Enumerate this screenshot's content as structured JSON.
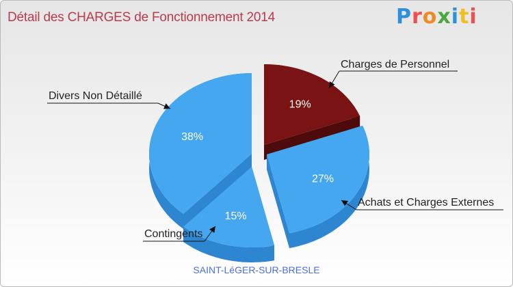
{
  "title": "Détail des CHARGES de Fonctionnement 2014",
  "logo": {
    "text": "Proxiti",
    "letter_colors": [
      "#2f8fd8",
      "#ef4f4f",
      "#f08a24",
      "#4aa83d",
      "#2f8fd8",
      "#f0c020",
      "#ef4f4f"
    ]
  },
  "footer_label": "SAINT-LéGER-SUR-BRESLE",
  "colors": {
    "title": "#bb3a4c",
    "blue_slice": "#45a7ef",
    "blue_side": "#2f86d0",
    "red_slice": "#7a1414",
    "red_side": "#4e0b0b"
  },
  "chart_data": {
    "type": "pie",
    "title": "Détail des CHARGES de Fonctionnement 2014",
    "slices": [
      {
        "label": "Charges de Personnel",
        "value": 19,
        "display": "19%",
        "color": "#7a1414"
      },
      {
        "label": "Achats et Charges Externes",
        "value": 27,
        "display": "27%",
        "color": "#45a7ef"
      },
      {
        "label": "Contingents",
        "value": 15,
        "display": "15%",
        "color": "#45a7ef"
      },
      {
        "label": "Divers Non Détaillé",
        "value": 38,
        "display": "38%",
        "color": "#45a7ef"
      }
    ]
  }
}
